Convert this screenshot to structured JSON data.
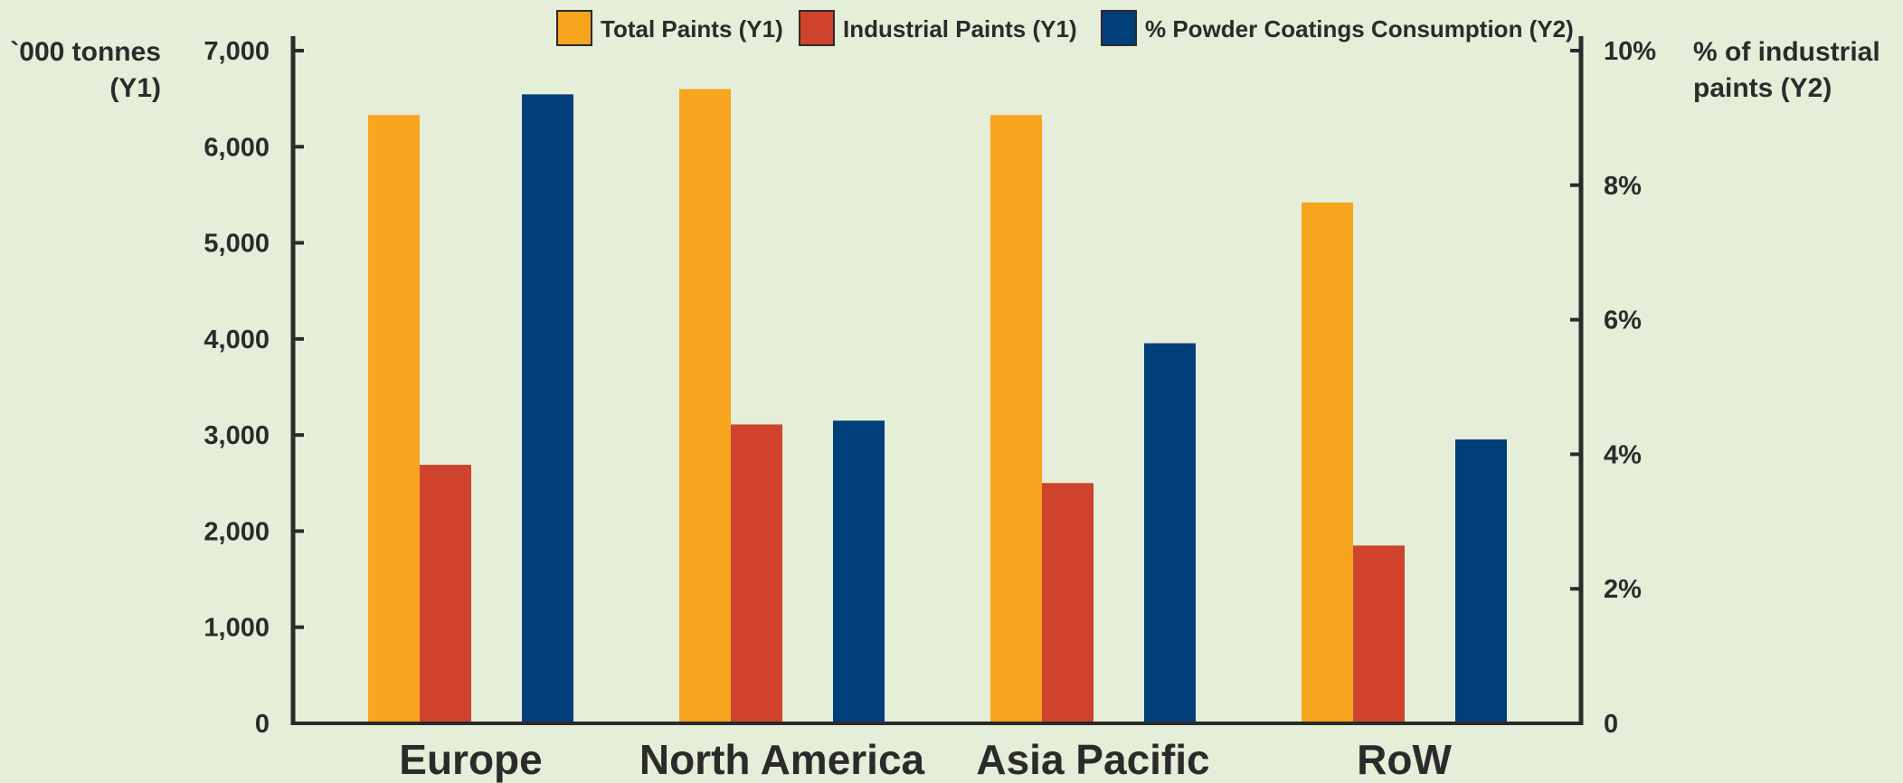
{
  "chart_data": {
    "type": "bar",
    "categories": [
      "Europe",
      "North America",
      "Asia Pacific",
      "RoW"
    ],
    "series": [
      {
        "name": "Total Paints (Y1)",
        "axis": "y1",
        "color": "#f7a51e",
        "values": [
          6330,
          6600,
          6330,
          5420
        ]
      },
      {
        "name": "Industrial Paints (Y1)",
        "axis": "y1",
        "color": "#cf432c",
        "values": [
          2690,
          3110,
          2500,
          1850
        ]
      },
      {
        "name": "% Powder Coatings Consumption (Y2)",
        "axis": "y2",
        "color": "#003f7a",
        "values": [
          9.35,
          4.5,
          5.65,
          4.22
        ]
      }
    ],
    "y1": {
      "label_lines": [
        "`000 tonnes",
        "(Y1)"
      ],
      "range": [
        0,
        7000
      ],
      "ticks": [
        0,
        1000,
        2000,
        3000,
        4000,
        5000,
        6000,
        7000
      ],
      "tick_labels": [
        "0",
        "1,000",
        "2,000",
        "3,000",
        "4,000",
        "5,000",
        "6,000",
        "7,000"
      ]
    },
    "y2": {
      "label_lines": [
        "% of industrial",
        "paints (Y2)"
      ],
      "range": [
        0,
        10
      ],
      "ticks": [
        0,
        2,
        4,
        6,
        8,
        10
      ],
      "tick_labels": [
        "0",
        "2%",
        "4%",
        "6%",
        "8%",
        "10%"
      ]
    },
    "grid": false,
    "legend": "top"
  }
}
